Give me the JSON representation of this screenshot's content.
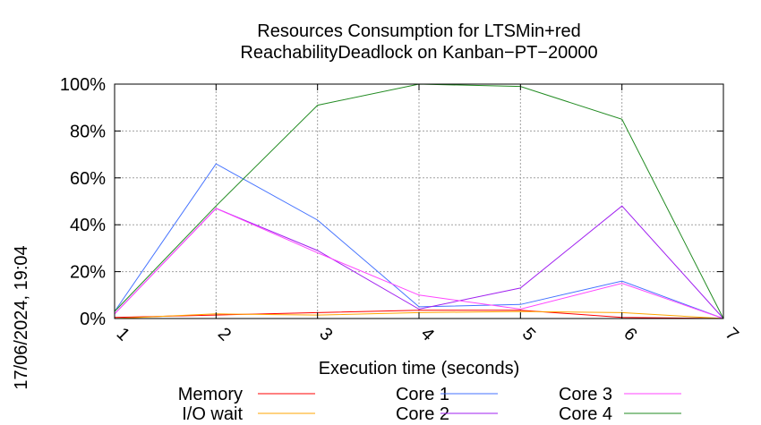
{
  "chart_data": {
    "type": "line",
    "title": [
      "Resources Consumption for LTSMin+red",
      "ReachabilityDeadlock on Kanban−PT−20000"
    ],
    "xlabel": "Execution time (seconds)",
    "ylabel": "",
    "side_label": "17/06/2024, 19:04",
    "xlim": [
      1,
      7
    ],
    "ylim": [
      0,
      100
    ],
    "x_ticks": [
      "1",
      "2",
      "3",
      "4",
      "5",
      "6",
      "7"
    ],
    "y_ticks": [
      "0%",
      "20%",
      "40%",
      "60%",
      "80%",
      "100%"
    ],
    "grid": true,
    "legend_position": "bottom",
    "x": [
      1,
      2,
      3,
      4,
      5,
      6,
      7
    ],
    "series": [
      {
        "name": "Memory",
        "color": "#ff0000",
        "values": [
          0.5,
          1.5,
          2.5,
          3.5,
          3.5,
          0.5,
          0
        ]
      },
      {
        "name": "I/O wait",
        "color": "#ffa500",
        "values": [
          0,
          2,
          1.5,
          2.5,
          3,
          2.5,
          0
        ]
      },
      {
        "name": "Core 1",
        "color": "#4472ff",
        "values": [
          3,
          66,
          42,
          5,
          6,
          16,
          0
        ]
      },
      {
        "name": "Core 2",
        "color": "#a020f0",
        "values": [
          2,
          47,
          29,
          4,
          13,
          48,
          0
        ]
      },
      {
        "name": "Core 3",
        "color": "#ff44ff",
        "values": [
          2,
          47,
          28,
          10,
          4,
          15,
          0
        ]
      },
      {
        "name": "Core 4",
        "color": "#228b22",
        "values": [
          3,
          48,
          91,
          100,
          99,
          85,
          0
        ]
      }
    ]
  }
}
